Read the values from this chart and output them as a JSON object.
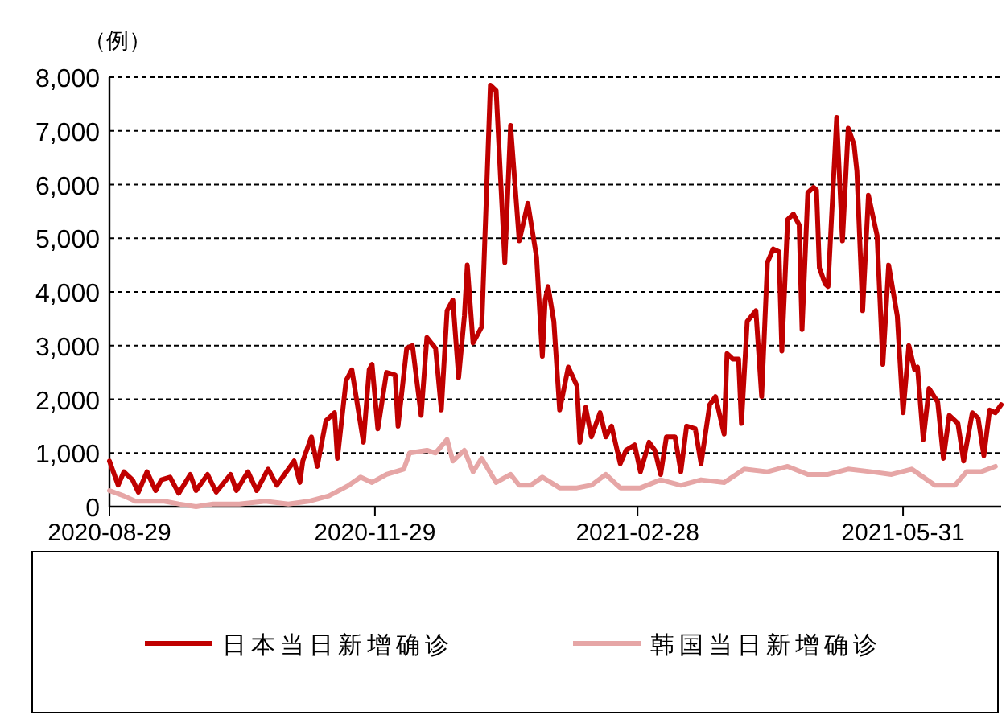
{
  "chart_data": {
    "type": "line",
    "ylabel": "（例）",
    "xlim": [
      "2020-08-29",
      "2021-07-04"
    ],
    "xticks": [
      "2020-08-29",
      "2020-11-29",
      "2021-02-28",
      "2021-05-31"
    ],
    "ylim": [
      0,
      8000
    ],
    "yticks": [
      0,
      {
        "value": 1000,
        "label": "1,000"
      },
      {
        "value": 2000,
        "label": "2,000"
      },
      {
        "value": 3000,
        "label": "3,000"
      },
      {
        "value": 4000,
        "label": "4,000"
      },
      {
        "value": 5000,
        "label": "5,000"
      },
      {
        "value": 6000,
        "label": "6,000"
      },
      {
        "value": 7000,
        "label": "7,000"
      },
      {
        "value": 8000,
        "label": "8,000"
      }
    ],
    "grid": "y",
    "legend": "bottom",
    "series": [
      {
        "name": "日本当日新增确诊",
        "color": "#c00000",
        "x": [
          "2020-08-29",
          "2020-09-01",
          "2020-09-03",
          "2020-09-06",
          "2020-09-08",
          "2020-09-11",
          "2020-09-14",
          "2020-09-16",
          "2020-09-19",
          "2020-09-22",
          "2020-09-26",
          "2020-09-28",
          "2020-10-02",
          "2020-10-05",
          "2020-10-10",
          "2020-10-12",
          "2020-10-16",
          "2020-10-19",
          "2020-10-23",
          "2020-10-26",
          "2020-11-01",
          "2020-11-03",
          "2020-11-04",
          "2020-11-07",
          "2020-11-09",
          "2020-11-12",
          "2020-11-15",
          "2020-11-16",
          "2020-11-19",
          "2020-11-21",
          "2020-11-25",
          "2020-11-27",
          "2020-11-28",
          "2020-11-30",
          "2020-12-03",
          "2020-12-06",
          "2020-12-07",
          "2020-12-10",
          "2020-12-12",
          "2020-12-15",
          "2020-12-17",
          "2020-12-20",
          "2020-12-22",
          "2020-12-24",
          "2020-12-26",
          "2020-12-28",
          "2020-12-30",
          "2020-12-31",
          "2021-01-02",
          "2021-01-05",
          "2021-01-08",
          "2021-01-10",
          "2021-01-13",
          "2021-01-15",
          "2021-01-18",
          "2021-01-21",
          "2021-01-24",
          "2021-01-26",
          "2021-01-27",
          "2021-01-28",
          "2021-01-30",
          "2021-02-01",
          "2021-02-04",
          "2021-02-07",
          "2021-02-08",
          "2021-02-10",
          "2021-02-12",
          "2021-02-15",
          "2021-02-17",
          "2021-02-19",
          "2021-02-22",
          "2021-02-24",
          "2021-02-27",
          "2021-03-01",
          "2021-03-04",
          "2021-03-06",
          "2021-03-08",
          "2021-03-10",
          "2021-03-13",
          "2021-03-15",
          "2021-03-17",
          "2021-03-20",
          "2021-03-22",
          "2021-03-25",
          "2021-03-27",
          "2021-03-30",
          "2021-03-31",
          "2021-04-02",
          "2021-04-04",
          "2021-04-05",
          "2021-04-07",
          "2021-04-10",
          "2021-04-12",
          "2021-04-14",
          "2021-04-16",
          "2021-04-18",
          "2021-04-19",
          "2021-04-21",
          "2021-04-23",
          "2021-04-25",
          "2021-04-26",
          "2021-04-28",
          "2021-04-30",
          "2021-05-01",
          "2021-05-02",
          "2021-05-04",
          "2021-05-05",
          "2021-05-08",
          "2021-05-10",
          "2021-05-12",
          "2021-05-14",
          "2021-05-15",
          "2021-05-17",
          "2021-05-19",
          "2021-05-22",
          "2021-05-24",
          "2021-05-26",
          "2021-05-29",
          "2021-05-31",
          "2021-06-02",
          "2021-06-04",
          "2021-06-05",
          "2021-06-07",
          "2021-06-09",
          "2021-06-12",
          "2021-06-14",
          "2021-06-16",
          "2021-06-19",
          "2021-06-21",
          "2021-06-24",
          "2021-06-26",
          "2021-06-28",
          "2021-06-30",
          "2021-07-02",
          "2021-07-04"
        ],
        "values": [
          850,
          400,
          650,
          500,
          270,
          650,
          300,
          500,
          550,
          250,
          600,
          300,
          600,
          270,
          600,
          300,
          650,
          300,
          700,
          400,
          850,
          450,
          850,
          1300,
          750,
          1600,
          1750,
          900,
          2350,
          2550,
          1200,
          2550,
          2650,
          1450,
          2500,
          2450,
          1500,
          2950,
          3000,
          1700,
          3150,
          2950,
          1800,
          3650,
          3850,
          2400,
          3550,
          4500,
          3050,
          3350,
          7850,
          7750,
          4550,
          7100,
          4950,
          5650,
          4650,
          2800,
          3850,
          4100,
          3450,
          1800,
          2600,
          2250,
          1200,
          1850,
          1300,
          1750,
          1300,
          1500,
          800,
          1050,
          1150,
          650,
          1200,
          1050,
          600,
          1300,
          1300,
          650,
          1500,
          1450,
          800,
          1900,
          2050,
          1350,
          2850,
          2750,
          2750,
          1550,
          3450,
          3650,
          2050,
          4550,
          4800,
          4750,
          2900,
          5350,
          5450,
          5250,
          3300,
          5850,
          5950,
          5900,
          4450,
          4150,
          4100,
          7250,
          4950,
          7050,
          6750,
          6250,
          3650,
          5800,
          5050,
          2650,
          4500,
          3550,
          1750,
          3000,
          2550,
          2600,
          1250,
          2200,
          1950,
          900,
          1700,
          1550,
          850,
          1750,
          1650,
          950,
          1800,
          1750,
          1900
        ]
      },
      {
        "name": "韩国当日新增确诊",
        "color": "#e6a6a6",
        "x": [
          "2020-08-29",
          "2020-09-03",
          "2020-09-07",
          "2020-09-12",
          "2020-09-17",
          "2020-09-22",
          "2020-09-28",
          "2020-10-04",
          "2020-10-13",
          "2020-10-22",
          "2020-10-30",
          "2020-11-06",
          "2020-11-13",
          "2020-11-20",
          "2020-11-24",
          "2020-11-28",
          "2020-12-03",
          "2020-12-09",
          "2020-12-11",
          "2020-12-17",
          "2020-12-20",
          "2020-12-24",
          "2020-12-26",
          "2020-12-30",
          "2021-01-02",
          "2021-01-05",
          "2021-01-10",
          "2021-01-15",
          "2021-01-18",
          "2021-01-22",
          "2021-01-26",
          "2021-02-01",
          "2021-02-07",
          "2021-02-12",
          "2021-02-17",
          "2021-02-22",
          "2021-03-01",
          "2021-03-08",
          "2021-03-15",
          "2021-03-22",
          "2021-03-30",
          "2021-04-06",
          "2021-04-14",
          "2021-04-21",
          "2021-04-28",
          "2021-05-05",
          "2021-05-12",
          "2021-05-20",
          "2021-05-27",
          "2021-06-03",
          "2021-06-11",
          "2021-06-18",
          "2021-06-22",
          "2021-06-27",
          "2021-07-02"
        ],
        "values": [
          300,
          200,
          100,
          100,
          100,
          50,
          0,
          50,
          50,
          100,
          50,
          100,
          200,
          400,
          550,
          450,
          600,
          700,
          1000,
          1050,
          1000,
          1250,
          850,
          1050,
          650,
          900,
          450,
          600,
          400,
          400,
          550,
          350,
          350,
          400,
          600,
          350,
          350,
          500,
          400,
          500,
          450,
          700,
          650,
          750,
          600,
          600,
          700,
          650,
          600,
          700,
          400,
          400,
          650,
          650,
          750
        ]
      }
    ]
  }
}
